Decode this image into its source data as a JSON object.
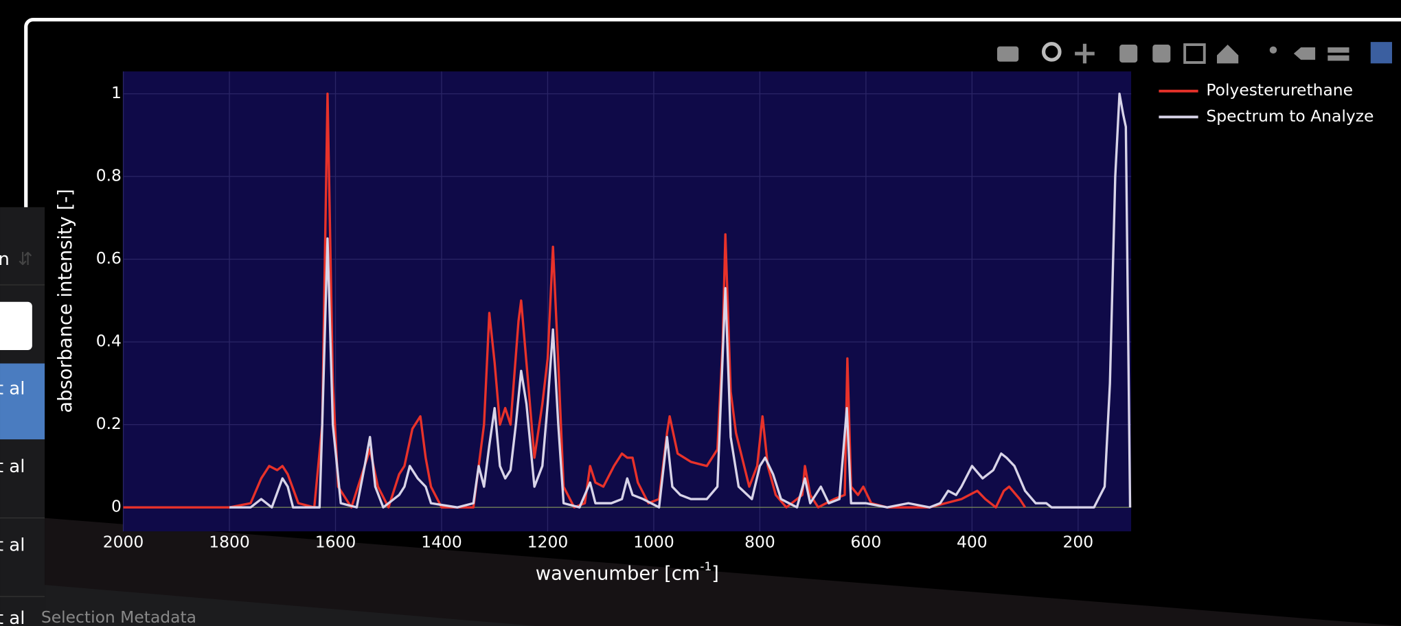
{
  "chart_data": {
    "type": "line",
    "x_label": {
      "text": "wavenumber [cm",
      "superscript": "-1",
      "suffix": "]"
    },
    "y_label": "absorbance intensity [-]",
    "xlim": [
      2000,
      100
    ],
    "ylim": [
      -0.058,
      1.054
    ],
    "xticks": [
      2000,
      1800,
      1600,
      1400,
      1200,
      1000,
      800,
      600,
      400,
      200
    ],
    "yticks": [
      0,
      0.2,
      0.4,
      0.6,
      0.8,
      1
    ],
    "grid": true,
    "legend": "top-right",
    "series": [
      {
        "name": "Polyesterurethane",
        "color": "#e8322a",
        "x": [
          2000,
          1800,
          1760,
          1740,
          1725,
          1710,
          1700,
          1690,
          1670,
          1640,
          1625,
          1615,
          1605,
          1595,
          1570,
          1545,
          1535,
          1520,
          1500,
          1480,
          1470,
          1455,
          1440,
          1430,
          1420,
          1400,
          1340,
          1320,
          1310,
          1300,
          1290,
          1280,
          1270,
          1255,
          1250,
          1240,
          1225,
          1210,
          1200,
          1190,
          1180,
          1170,
          1150,
          1130,
          1120,
          1110,
          1095,
          1075,
          1060,
          1050,
          1040,
          1030,
          1010,
          990,
          975,
          970,
          955,
          930,
          900,
          880,
          870,
          865,
          855,
          845,
          820,
          805,
          795,
          785,
          770,
          750,
          720,
          715,
          705,
          690,
          660,
          640,
          635,
          628,
          615,
          605,
          590,
          560,
          480,
          450,
          420,
          390,
          375,
          355,
          340,
          330,
          310,
          300
        ],
        "values": [
          0,
          0,
          0.01,
          0.07,
          0.1,
          0.09,
          0.1,
          0.08,
          0.01,
          0,
          0.2,
          1,
          0.3,
          0.05,
          0,
          0.1,
          0.14,
          0.05,
          0,
          0.08,
          0.1,
          0.19,
          0.22,
          0.12,
          0.05,
          0,
          0,
          0.2,
          0.47,
          0.35,
          0.2,
          0.24,
          0.2,
          0.45,
          0.5,
          0.35,
          0.12,
          0.25,
          0.36,
          0.63,
          0.35,
          0.05,
          0,
          0.01,
          0.1,
          0.06,
          0.05,
          0.1,
          0.13,
          0.12,
          0.12,
          0.06,
          0.01,
          0.02,
          0.18,
          0.22,
          0.13,
          0.11,
          0.1,
          0.14,
          0.4,
          0.66,
          0.28,
          0.18,
          0.05,
          0.1,
          0.22,
          0.1,
          0.03,
          0,
          0.03,
          0.1,
          0.03,
          0,
          0.02,
          0.03,
          0.36,
          0.05,
          0.03,
          0.05,
          0.01,
          0,
          0,
          0.01,
          0.02,
          0.04,
          0.02,
          0,
          0.04,
          0.05,
          0.02,
          0
        ]
      },
      {
        "name": "Spectrum to Analyze",
        "color": "#d8d4e8",
        "x": [
          1800,
          1760,
          1740,
          1720,
          1700,
          1690,
          1680,
          1630,
          1625,
          1615,
          1605,
          1590,
          1560,
          1545,
          1535,
          1525,
          1510,
          1480,
          1470,
          1460,
          1445,
          1430,
          1420,
          1370,
          1340,
          1330,
          1320,
          1310,
          1300,
          1290,
          1280,
          1270,
          1260,
          1250,
          1240,
          1225,
          1210,
          1200,
          1190,
          1180,
          1170,
          1140,
          1120,
          1110,
          1080,
          1060,
          1050,
          1040,
          1020,
          990,
          975,
          965,
          950,
          930,
          900,
          880,
          865,
          855,
          840,
          815,
          800,
          790,
          775,
          760,
          730,
          715,
          705,
          685,
          670,
          650,
          636,
          628,
          600,
          560,
          520,
          480,
          460,
          445,
          430,
          420,
          400,
          380,
          360,
          345,
          335,
          320,
          300,
          280,
          260,
          250,
          170,
          150,
          140,
          130,
          122,
          115,
          110,
          102
        ],
        "values": [
          0,
          0,
          0.02,
          0,
          0.07,
          0.05,
          0,
          0,
          0.2,
          0.65,
          0.2,
          0.01,
          0,
          0.1,
          0.17,
          0.05,
          0,
          0.03,
          0.05,
          0.1,
          0.07,
          0.05,
          0.01,
          0,
          0.01,
          0.1,
          0.05,
          0.15,
          0.24,
          0.1,
          0.07,
          0.09,
          0.2,
          0.33,
          0.25,
          0.05,
          0.1,
          0.25,
          0.43,
          0.2,
          0.01,
          0,
          0.06,
          0.01,
          0.01,
          0.02,
          0.07,
          0.03,
          0.02,
          0,
          0.17,
          0.05,
          0.03,
          0.02,
          0.02,
          0.05,
          0.53,
          0.17,
          0.05,
          0.02,
          0.1,
          0.12,
          0.08,
          0.02,
          0,
          0.07,
          0.01,
          0.05,
          0.01,
          0.02,
          0.24,
          0.01,
          0.01,
          0,
          0.01,
          0,
          0.01,
          0.04,
          0.03,
          0.05,
          0.1,
          0.07,
          0.09,
          0.13,
          0.12,
          0.1,
          0.04,
          0.01,
          0.01,
          0,
          0,
          0.05,
          0.3,
          0.8,
          1,
          0.95,
          0.92,
          0
        ]
      }
    ]
  },
  "ui": {
    "sidebar_rows": [
      "n",
      "t al",
      "t al",
      "t al",
      "t al"
    ],
    "section_title": "Selection Metadata"
  }
}
